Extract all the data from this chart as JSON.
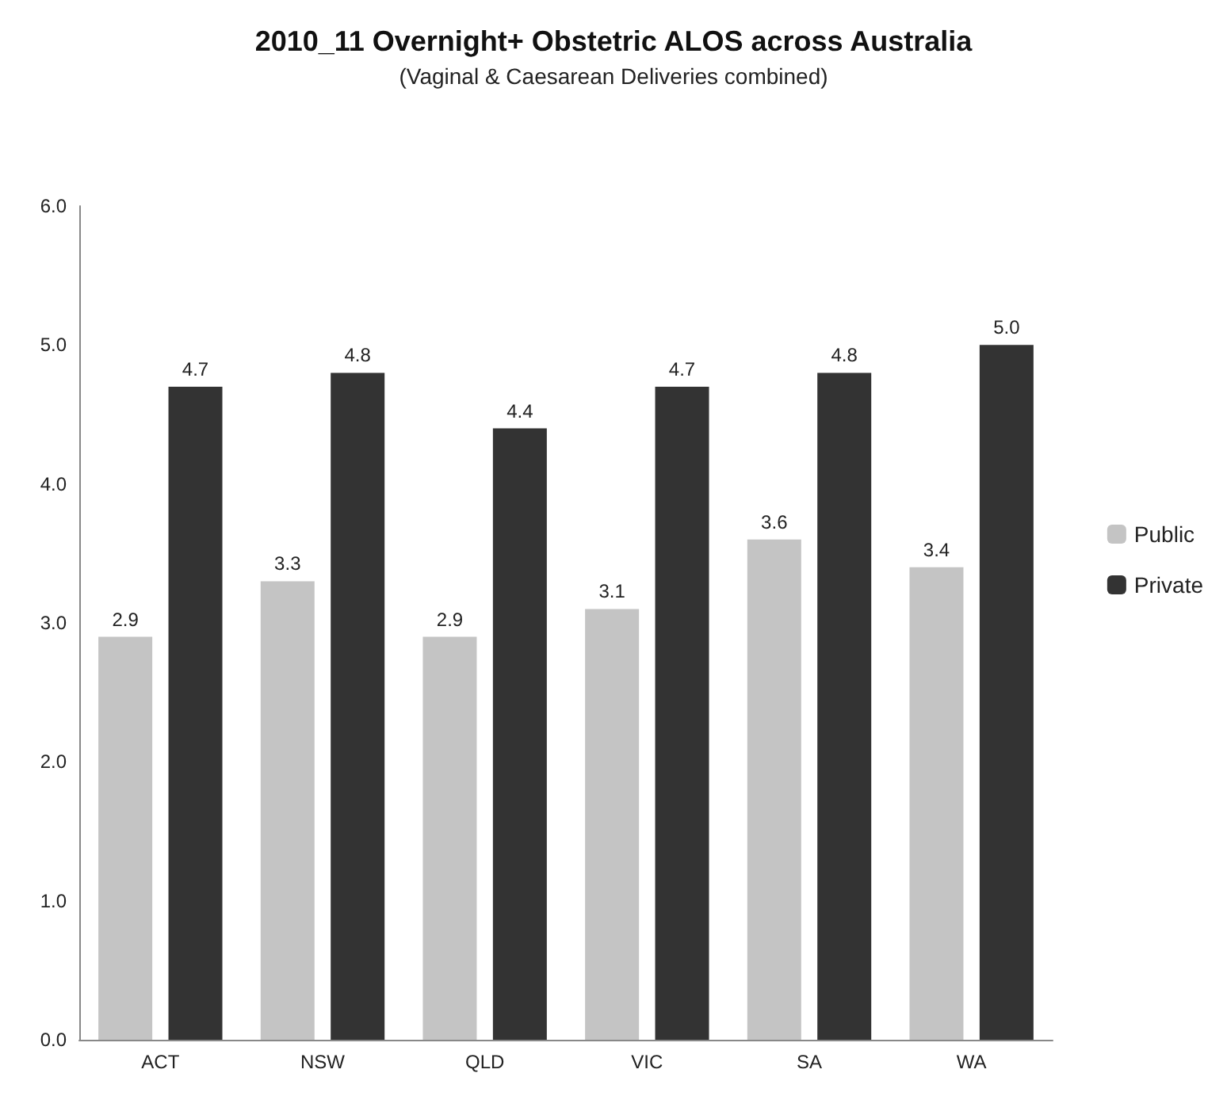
{
  "chart_data": {
    "type": "bar",
    "title": "2010_11 Overnight+ Obstetric ALOS across Australia",
    "subtitle": "(Vaginal & Caesarean Deliveries combined)",
    "categories": [
      "ACT",
      "NSW",
      "QLD",
      "VIC",
      "SA",
      "WA"
    ],
    "series": [
      {
        "name": "Public",
        "color": "#c4c4c4",
        "values": [
          2.9,
          3.3,
          2.9,
          3.1,
          3.6,
          3.4
        ]
      },
      {
        "name": "Private",
        "color": "#333333",
        "values": [
          4.7,
          4.8,
          4.4,
          4.7,
          4.8,
          5.0
        ],
        "value_labels": [
          "4.7",
          "4.8",
          "4.4",
          "4.7",
          "4.8",
          "5.0"
        ]
      }
    ],
    "ylim": [
      0,
      6
    ],
    "yticks": [
      {
        "value": 0,
        "label": "0.0"
      },
      {
        "value": 1,
        "label": "1.0"
      },
      {
        "value": 2,
        "label": "2.0"
      },
      {
        "value": 3,
        "label": "3.0"
      },
      {
        "value": 4,
        "label": "4.0"
      },
      {
        "value": 5,
        "label": "5.0"
      },
      {
        "value": 6,
        "label": "6.0"
      }
    ],
    "data_labels": true,
    "grid": false,
    "legend": "right"
  }
}
